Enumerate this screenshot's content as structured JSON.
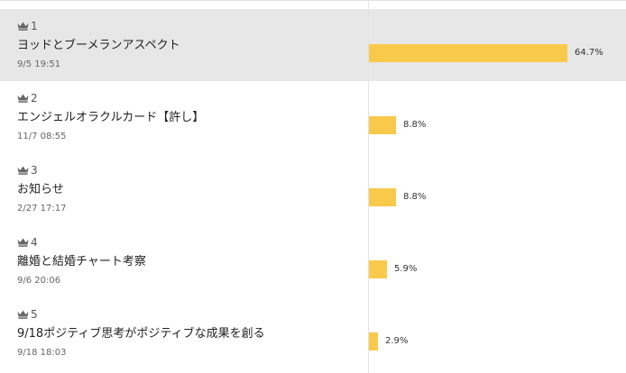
{
  "colors": {
    "bar": "#f9c94b",
    "highlight_row": "#e7e7e7"
  },
  "items": [
    {
      "rank": "1",
      "title": "ヨッドとブーメランアスペクト",
      "date": "9/5 19:51",
      "percent": "64.7%",
      "share": 0.647,
      "highlighted": true
    },
    {
      "rank": "2",
      "title": "エンジェルオラクルカード【許し】",
      "date": "11/7 08:55",
      "percent": "8.8%",
      "share": 0.088,
      "highlighted": false
    },
    {
      "rank": "3",
      "title": "お知らせ",
      "date": "2/27 17:17",
      "percent": "8.8%",
      "share": 0.088,
      "highlighted": false
    },
    {
      "rank": "4",
      "title": "離婚と結婚チャート考察",
      "date": "9/6 20:06",
      "percent": "5.9%",
      "share": 0.059,
      "highlighted": false
    },
    {
      "rank": "5",
      "title": "9/18ポジティブ思考がポジティブな成果を創る",
      "date": "9/18 18:03",
      "percent": "2.9%",
      "share": 0.029,
      "highlighted": false
    }
  ]
}
